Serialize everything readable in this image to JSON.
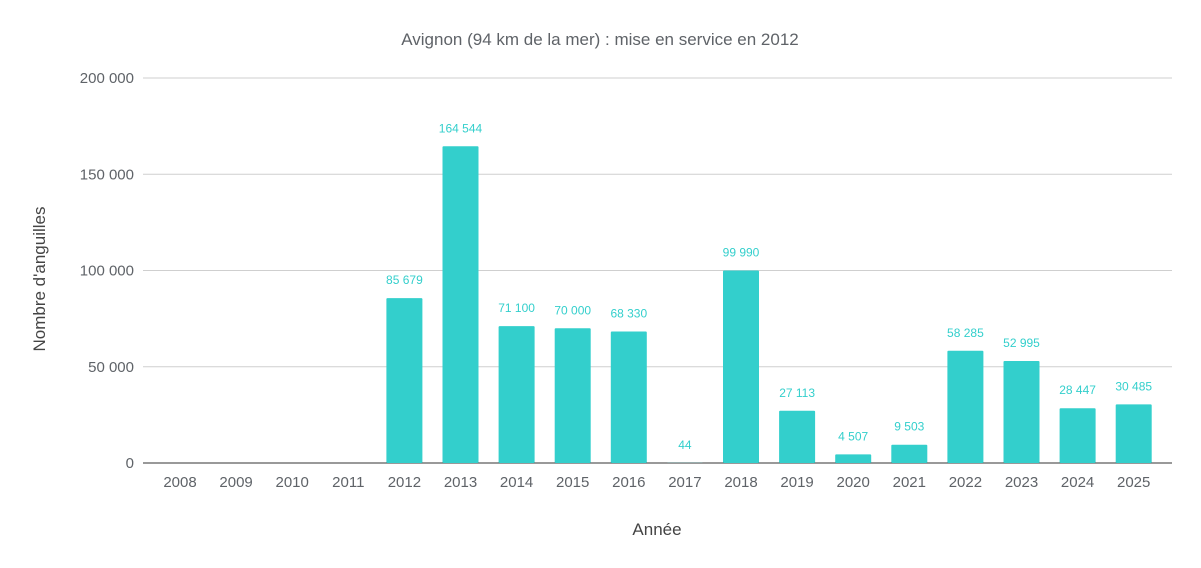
{
  "chart_data": {
    "type": "bar",
    "title": "Avignon (94 km de la mer) : mise en service en 2012",
    "xlabel": "Année",
    "ylabel": "Nombre d'anguilles",
    "categories": [
      "2008",
      "2009",
      "2010",
      "2011",
      "2012",
      "2013",
      "2014",
      "2015",
      "2016",
      "2017",
      "2018",
      "2019",
      "2020",
      "2021",
      "2022",
      "2023",
      "2024",
      "2025"
    ],
    "values": [
      null,
      null,
      null,
      null,
      85679,
      164544,
      71100,
      70000,
      68330,
      44,
      99990,
      27113,
      4507,
      9503,
      58285,
      52995,
      28447,
      30485
    ],
    "data_labels": [
      "",
      "",
      "",
      "",
      "85 679",
      "164 544",
      "71 100",
      "70 000",
      "68 330",
      "44",
      "99 990",
      "27 113",
      "4 507",
      "9 503",
      "58 285",
      "52 995",
      "28 447",
      "30 485"
    ],
    "y_ticks": [
      0,
      50000,
      100000,
      150000,
      200000
    ],
    "y_tick_labels": [
      "0",
      "50 000",
      "100 000",
      "150 000",
      "200 000"
    ],
    "ylim": [
      0,
      200000
    ],
    "grid": true,
    "legend": "none",
    "bar_color": "#33cfcc"
  }
}
